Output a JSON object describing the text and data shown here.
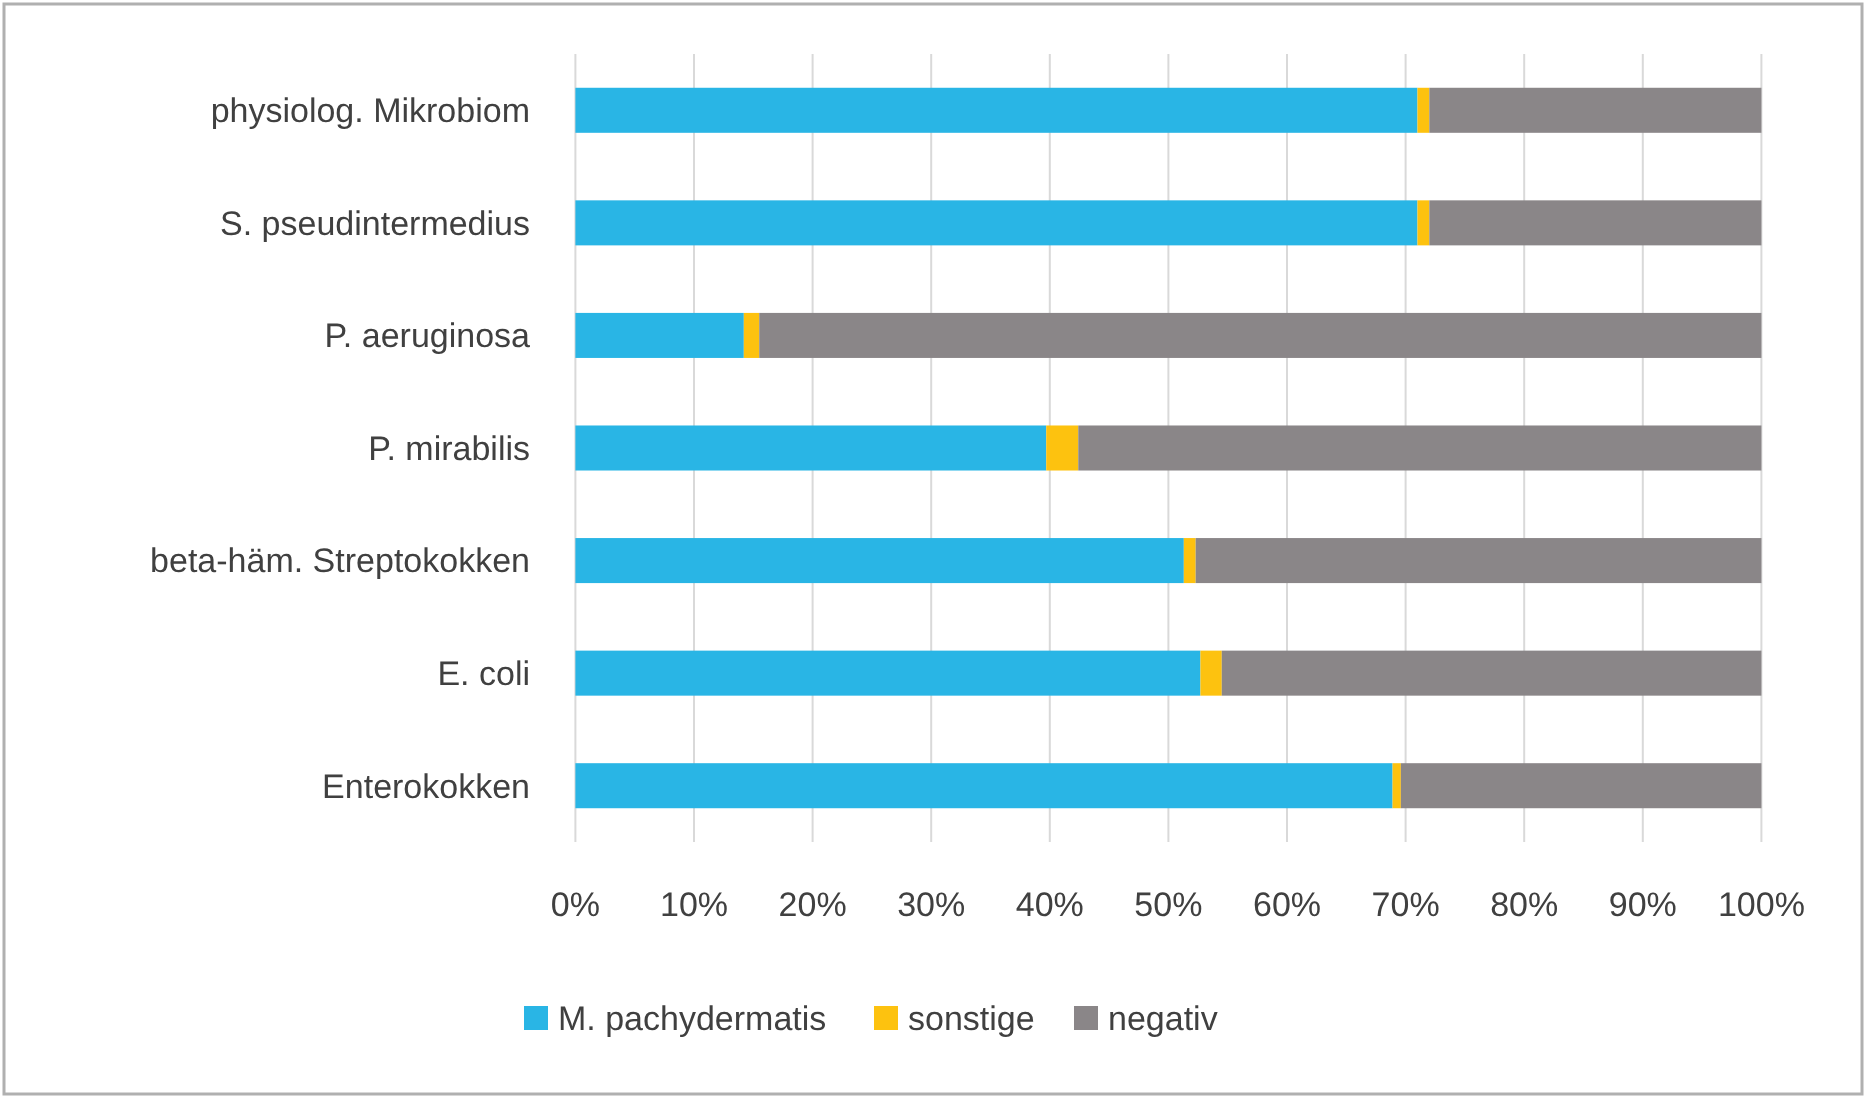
{
  "chart_data": {
    "type": "bar",
    "orientation": "horizontal",
    "stacked": true,
    "categories": [
      "physiolog. Mikrobiom",
      "S. pseudintermedius",
      "P. aeruginosa",
      "P. mirabilis",
      "beta-häm. Streptokokken",
      "E. coli",
      "Enterokokken"
    ],
    "series": [
      {
        "name": "M. pachydermatis",
        "color": "#29b5e5",
        "values": [
          71,
          71,
          14.2,
          39.7,
          51.3,
          52.7,
          68.9
        ]
      },
      {
        "name": "sonstige",
        "color": "#fdc20f",
        "values": [
          1,
          1,
          1.3,
          2.7,
          1,
          1.8,
          0.7
        ]
      },
      {
        "name": "negativ",
        "color": "#8a8688",
        "values": [
          28,
          28,
          84.5,
          57.6,
          47.7,
          45.5,
          30.4
        ]
      }
    ],
    "xlim": [
      0,
      100
    ],
    "xticks": [
      {
        "value": 0,
        "label": "0%"
      },
      {
        "value": 10,
        "label": "10%"
      },
      {
        "value": 20,
        "label": "20%"
      },
      {
        "value": 30,
        "label": "30%"
      },
      {
        "value": 40,
        "label": "40%"
      },
      {
        "value": 50,
        "label": "50%"
      },
      {
        "value": 60,
        "label": "60%"
      },
      {
        "value": 70,
        "label": "70%"
      },
      {
        "value": 80,
        "label": "80%"
      },
      {
        "value": 90,
        "label": "90%"
      },
      {
        "value": 100,
        "label": "100%"
      }
    ],
    "grid": "x",
    "legend": "bottom"
  }
}
